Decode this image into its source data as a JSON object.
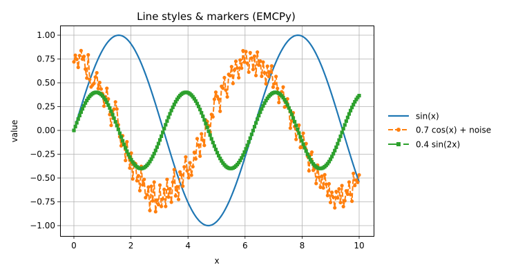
{
  "chart_data": {
    "type": "line",
    "title": "Line styles & markers (EMCPy)",
    "xlabel": "x",
    "ylabel": "value",
    "xlim": [
      -0.5,
      10.5
    ],
    "ylim": [
      -1.1,
      1.1
    ],
    "xticks": [
      0,
      2,
      4,
      6,
      8,
      10
    ],
    "xtick_labels": [
      "0",
      "2",
      "4",
      "6",
      "8",
      "10"
    ],
    "yticks": [
      1.0,
      0.75,
      0.5,
      0.25,
      0.0,
      -0.25,
      -0.5,
      -0.75,
      -1.0
    ],
    "ytick_labels": [
      "1.00",
      "0.75",
      "0.50",
      "0.25",
      "0.00",
      "−0.25",
      "−0.50",
      "−0.75",
      "−1.00"
    ],
    "grid": true,
    "legend_position": "outside right, center",
    "x_range": {
      "start": 0,
      "stop": 10,
      "num_points": 200
    },
    "noise_sigma": 0.15,
    "noise": [
      0.02,
      0.09,
      0.05,
      -0.03,
      0.1,
      0.16,
      0.08,
      0.12,
      0.0,
      -0.08,
      0.18,
      -0.06,
      -0.12,
      -0.08,
      -0.04,
      0.05,
      0.12,
      -0.02,
      0.07,
      0.03,
      0.01,
      -0.09,
      0.04,
      0.16,
      0.08,
      -0.05,
      -0.13,
      0.02,
      0.11,
      0.22,
      0.18,
      0.05,
      -0.04,
      -0.1,
      0.04,
      -0.02,
      -0.15,
      0.08,
      -0.03,
      -0.13,
      0.06,
      -0.18,
      0.02,
      0.04,
      -0.11,
      -0.03,
      -0.16,
      0.12,
      -0.05,
      0.03,
      -0.14,
      -0.09,
      0.01,
      -0.22,
      0.05,
      -0.09,
      0.12,
      -0.18,
      -0.05,
      -0.09,
      0.12,
      -0.1,
      -0.02,
      0.08,
      -0.1,
      0.18,
      -0.01,
      0.07,
      -0.08,
      0.12,
      0.24,
      -0.05,
      0.03,
      -0.12,
      0.15,
      0.1,
      -0.04,
      0.14,
      0.22,
      0.05,
      -0.05,
      0.08,
      -0.08,
      -0.02,
      0.1,
      0.0,
      0.18,
      0.08,
      -0.07,
      0.13,
      0.03,
      -0.06,
      0.17,
      0.12,
      0.04,
      -0.06,
      0.09,
      0.03,
      0.18,
      0.22,
      0.14,
      0.08,
      -0.08,
      0.15,
      0.1,
      0.18,
      0.02,
      -0.08,
      0.13,
      0.09,
      0.16,
      -0.04,
      0.08,
      0.15,
      0.06,
      -0.06,
      0.11,
      0.01,
      0.18,
      0.05,
      0.15,
      0.02,
      -0.08,
      0.12,
      0.06,
      -0.06,
      0.08,
      -0.12,
      0.13,
      0.0,
      0.05,
      -0.1,
      0.06,
      -0.04,
      -0.14,
      0.06,
      -0.03,
      0.04,
      0.12,
      -0.08,
      -0.02,
      0.08,
      -0.02,
      -0.14,
      -0.04,
      0.03,
      0.11,
      -0.07,
      -0.03,
      0.08,
      0.02,
      -0.16,
      -0.05,
      0.07,
      -0.04,
      -0.14,
      -0.01,
      0.08,
      -0.12,
      -0.08,
      0.1,
      0.02,
      0.06,
      -0.04,
      -0.16,
      0.04,
      0.1,
      -0.06,
      0.0,
      -0.14,
      0.08,
      -0.02,
      -0.1,
      0.04,
      -0.06,
      0.1,
      0.02,
      -0.08,
      0.06,
      -0.12,
      0.0,
      -0.04,
      -0.14,
      0.04,
      -0.02,
      0.08,
      -0.06,
      0.12,
      -0.1,
      -0.04,
      0.06,
      0.02,
      0.14,
      0.0,
      -0.08,
      0.2,
      0.06,
      0.1,
      0.06,
      0.12
    ],
    "series": [
      {
        "name": "sin(x)",
        "color": "#1f77b4",
        "linestyle": "solid",
        "marker": "none",
        "linewidth": 2.2,
        "formula": "sin"
      },
      {
        "name": "0.7 cos(x) + noise",
        "color": "#ff7f0e",
        "linestyle": "dashed",
        "marker": "circle",
        "linewidth": 2,
        "formula": "cosnoise"
      },
      {
        "name": "0.4 sin(2x)",
        "color": "#2ca02c",
        "linestyle": "dashdot",
        "marker": "square",
        "linewidth": 2,
        "formula": "sin2"
      }
    ]
  },
  "legend": {
    "items": [
      {
        "label": "sin(x)"
      },
      {
        "label": "0.7 cos(x) + noise"
      },
      {
        "label": "0.4 sin(2x)"
      }
    ]
  }
}
